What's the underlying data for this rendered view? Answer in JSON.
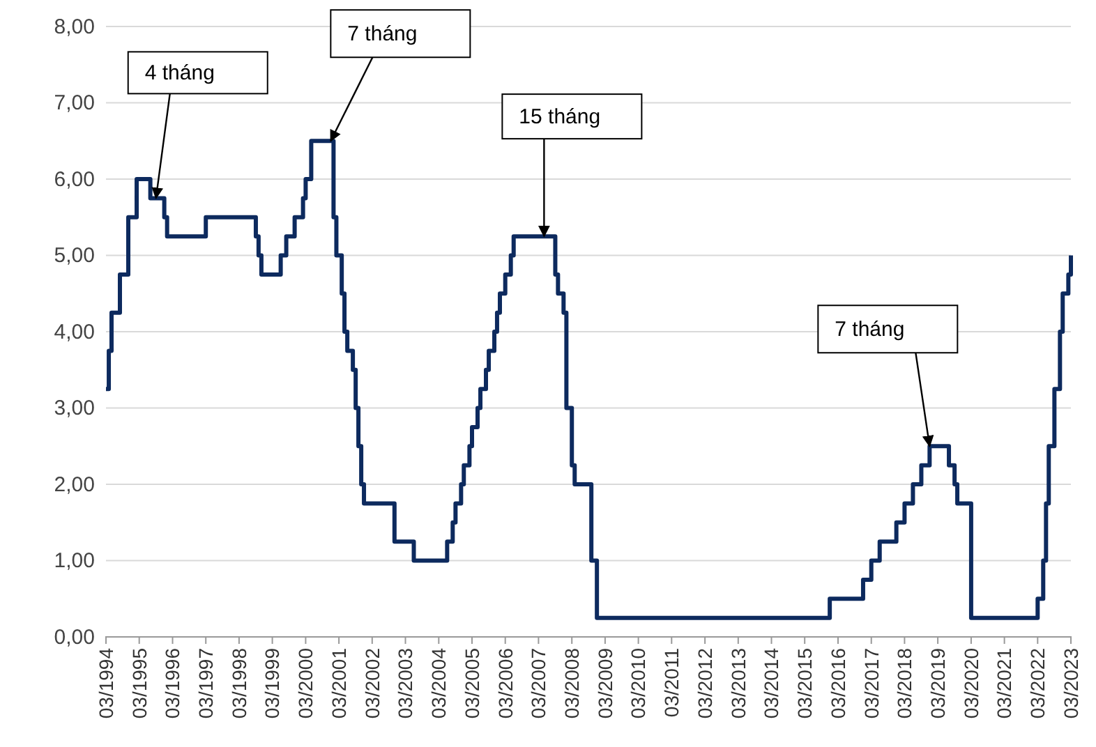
{
  "chart_data": {
    "type": "step",
    "x": [
      "1994-03",
      "1994-04",
      "1994-05",
      "1994-08",
      "1994-11",
      "1995-02",
      "1995-07",
      "1995-12",
      "1996-01",
      "1997-03",
      "1998-09",
      "1998-10",
      "1998-11",
      "1999-06",
      "1999-08",
      "1999-11",
      "2000-02",
      "2000-03",
      "2000-05",
      "2001-01",
      "2001-02",
      "2001-03",
      "2001-04",
      "2001-05",
      "2001-06",
      "2001-08",
      "2001-09",
      "2001-10",
      "2001-11",
      "2001-12",
      "2002-11",
      "2003-06",
      "2004-06",
      "2004-08",
      "2004-09",
      "2004-11",
      "2004-12",
      "2005-02",
      "2005-03",
      "2005-05",
      "2005-06",
      "2005-08",
      "2005-09",
      "2005-11",
      "2005-12",
      "2006-01",
      "2006-03",
      "2006-05",
      "2006-06",
      "2007-09",
      "2007-10",
      "2007-12",
      "2008-01",
      "2008-03",
      "2008-04",
      "2008-10",
      "2008-12",
      "2015-12",
      "2016-12",
      "2017-03",
      "2017-06",
      "2017-12",
      "2018-03",
      "2018-06",
      "2018-09",
      "2018-12",
      "2019-07",
      "2019-09",
      "2019-10",
      "2020-03",
      "2022-03",
      "2022-05",
      "2022-06",
      "2022-07",
      "2022-09",
      "2022-11",
      "2022-12",
      "2023-02",
      "2023-03"
    ],
    "series": [
      {
        "color": "#0d2a5e",
        "values": [
          3.25,
          3.75,
          4.25,
          4.75,
          5.5,
          6.0,
          5.75,
          5.5,
          5.25,
          5.5,
          5.25,
          5.0,
          4.75,
          5.0,
          5.25,
          5.5,
          5.75,
          6.0,
          6.5,
          5.5,
          5.0,
          5.0,
          4.5,
          4.0,
          3.75,
          3.5,
          3.0,
          2.5,
          2.0,
          1.75,
          1.25,
          1.0,
          1.25,
          1.5,
          1.75,
          2.0,
          2.25,
          2.5,
          2.75,
          3.0,
          3.25,
          3.5,
          3.75,
          4.0,
          4.25,
          4.5,
          4.75,
          5.0,
          5.25,
          4.75,
          4.5,
          4.25,
          3.0,
          2.25,
          2.0,
          1.0,
          0.25,
          0.5,
          0.75,
          1.0,
          1.25,
          1.5,
          1.75,
          2.0,
          2.25,
          2.5,
          2.25,
          2.0,
          1.75,
          0.25,
          0.5,
          1.0,
          1.75,
          2.5,
          3.25,
          4.0,
          4.5,
          4.75,
          5.0
        ]
      }
    ],
    "xlim": [
      "1994-03",
      "2023-03"
    ],
    "xticks": [
      {
        "value": "1994-03",
        "label": "03/1994"
      },
      {
        "value": "1995-03",
        "label": "03/1995"
      },
      {
        "value": "1996-03",
        "label": "03/1996"
      },
      {
        "value": "1997-03",
        "label": "03/1997"
      },
      {
        "value": "1998-03",
        "label": "03/1998"
      },
      {
        "value": "1999-03",
        "label": "03/1999"
      },
      {
        "value": "2000-03",
        "label": "03/2000"
      },
      {
        "value": "2001-03",
        "label": "03/2001"
      },
      {
        "value": "2002-03",
        "label": "03/2002"
      },
      {
        "value": "2003-03",
        "label": "03/2003"
      },
      {
        "value": "2004-03",
        "label": "03/2004"
      },
      {
        "value": "2005-03",
        "label": "03/2005"
      },
      {
        "value": "2006-03",
        "label": "03/2006"
      },
      {
        "value": "2007-03",
        "label": "03/2007"
      },
      {
        "value": "2008-03",
        "label": "03/2008"
      },
      {
        "value": "2009-03",
        "label": "03/2009"
      },
      {
        "value": "2010-03",
        "label": "03/2010"
      },
      {
        "value": "2011-03",
        "label": "03/2011"
      },
      {
        "value": "2012-03",
        "label": "03/2012"
      },
      {
        "value": "2013-03",
        "label": "03/2013"
      },
      {
        "value": "2014-03",
        "label": "03/2014"
      },
      {
        "value": "2015-03",
        "label": "03/2015"
      },
      {
        "value": "2016-03",
        "label": "03/2016"
      },
      {
        "value": "2017-03",
        "label": "03/2017"
      },
      {
        "value": "2018-03",
        "label": "03/2018"
      },
      {
        "value": "2019-03",
        "label": "03/2019"
      },
      {
        "value": "2020-03",
        "label": "03/2020"
      },
      {
        "value": "2021-03",
        "label": "03/2021"
      },
      {
        "value": "2022-03",
        "label": "03/2022"
      },
      {
        "value": "2023-03",
        "label": "03/2023"
      }
    ],
    "ylim": [
      0,
      8
    ],
    "yticks": [
      {
        "value": 0,
        "label": "0,00"
      },
      {
        "value": 1,
        "label": "1,00"
      },
      {
        "value": 2,
        "label": "2,00"
      },
      {
        "value": 3,
        "label": "3,00"
      },
      {
        "value": 4,
        "label": "4,00"
      },
      {
        "value": 5,
        "label": "5,00"
      },
      {
        "value": 6,
        "label": "6,00"
      },
      {
        "value": 7,
        "label": "7,00"
      },
      {
        "value": 8,
        "label": "8,00"
      }
    ],
    "grid": "y",
    "annotations": [
      {
        "text": "4 tháng",
        "x": "1995-09",
        "y": 5.75
      },
      {
        "text": "7 tháng",
        "x": "2000-12",
        "y": 6.5
      },
      {
        "text": "15 tháng",
        "x": "2007-05",
        "y": 5.25
      },
      {
        "text": "7 tháng",
        "x": "2018-12",
        "y": 2.5
      }
    ]
  }
}
